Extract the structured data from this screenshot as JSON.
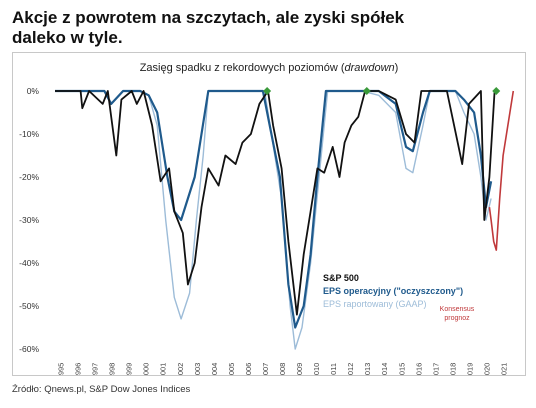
{
  "page": {
    "headline_line1": "Akcje z powrotem na szczytach, ale zyski spółek",
    "headline_line2": "daleko w tyle.",
    "source": "Źródło: Qnews.pl, S&P Dow Jones Indices"
  },
  "chart_data": {
    "type": "line",
    "title_main": "Zasięg spadku z rekordowych poziomów (",
    "title_italic": "drawdown",
    "title_end": ")",
    "xlim": [
      1995,
      2022
    ],
    "ylim": [
      -60,
      0
    ],
    "yticks": [
      "0%",
      "-10%",
      "-20%",
      "-30%",
      "-40%",
      "-50%",
      "-60%"
    ],
    "ytick_values": [
      0,
      -10,
      -20,
      -30,
      -40,
      -50,
      -60
    ],
    "xticks": [
      "1995",
      "1996",
      "1997",
      "1998",
      "1999",
      "2000",
      "2001",
      "2002",
      "2003",
      "2004",
      "2005",
      "2006",
      "2007",
      "2008",
      "2009",
      "2010",
      "2011",
      "2012",
      "2013",
      "2014",
      "2015",
      "2016",
      "2017",
      "2018",
      "2019",
      "2020",
      "2021"
    ],
    "grid": false,
    "legend_placement": "bottom-right",
    "colors": {
      "sp500": "#111111",
      "eps_operating": "#1f5a8c",
      "eps_reported": "#9dbcd8",
      "consensus": "#c0393b",
      "marker": "#3a9a3a"
    },
    "series": [
      {
        "name": "S&P 500",
        "x": [
          1995,
          1996.5,
          1996.6,
          1997,
          1997.8,
          1998.1,
          1998.6,
          1998.9,
          1999.5,
          1999.8,
          2000.2,
          2000.7,
          2001.2,
          2001.7,
          2002,
          2002.5,
          2002.8,
          2003.2,
          2003.6,
          2004,
          2004.6,
          2005,
          2005.6,
          2006,
          2006.5,
          2007,
          2007.5,
          2007.8,
          2008.3,
          2008.7,
          2009.2,
          2009.6,
          2010,
          2010.4,
          2010.8,
          2011.3,
          2011.7,
          2012,
          2012.4,
          2012.8,
          2013.2,
          2014,
          2015,
          2015.6,
          2016.1,
          2016.5,
          2017,
          2018,
          2018.9,
          2019.3,
          2020,
          2020.2,
          2020.5,
          2020.8
        ],
        "values": [
          0,
          0,
          -4,
          0,
          -3,
          0,
          -15,
          -2,
          0,
          -3,
          0,
          -8,
          -21,
          -18,
          -28,
          -33,
          -45,
          -40,
          -27,
          -18,
          -22,
          -15,
          -17,
          -12,
          -10,
          -3,
          0,
          -8,
          -18,
          -35,
          -52,
          -38,
          -28,
          -18,
          -19,
          -13,
          -20,
          -12,
          -8,
          -6,
          0,
          0,
          -2,
          -10,
          -12,
          0,
          0,
          0,
          -17,
          -3,
          0,
          -30,
          -20,
          0
        ]
      },
      {
        "name": "EPS operacyjny (\"oczyszczony\")",
        "x": [
          1995,
          1997.9,
          1998.3,
          1999,
          2000,
          2000.5,
          2001,
          2001.6,
          2002,
          2002.4,
          2002.8,
          2003.2,
          2003.6,
          2004,
          2006.5,
          2007.2,
          2007.6,
          2008.2,
          2008.7,
          2009.1,
          2009.6,
          2010,
          2010.4,
          2010.9,
          2013,
          2014,
          2015,
          2015.6,
          2016,
          2016.6,
          2017,
          2018.5,
          2019,
          2019.6,
          2020,
          2020.3,
          2020.6
        ],
        "values": [
          0,
          0,
          -3,
          0,
          0,
          -1,
          -5,
          -20,
          -28,
          -30,
          -25,
          -20,
          -10,
          0,
          0,
          0,
          -8,
          -20,
          -45,
          -55,
          -50,
          -38,
          -20,
          0,
          0,
          0,
          -3,
          -13,
          -14,
          -5,
          0,
          0,
          -2,
          -5,
          -15,
          -27,
          -21
        ]
      },
      {
        "name": "EPS raportowany (GAAP)",
        "x": [
          1995,
          1997.9,
          1998.3,
          1999,
          2000,
          2000.5,
          2001,
          2001.5,
          2002,
          2002.4,
          2002.9,
          2003.3,
          2003.7,
          2004,
          2006.5,
          2007.3,
          2007.7,
          2008.3,
          2008.8,
          2009.1,
          2009.5,
          2010,
          2010.5,
          2011,
          2013,
          2014,
          2015,
          2015.6,
          2016,
          2016.6,
          2017,
          2018.5,
          2019,
          2019.6,
          2020,
          2020.3,
          2020.6
        ],
        "values": [
          0,
          0,
          -3,
          0,
          0,
          -1,
          -8,
          -30,
          -48,
          -53,
          -47,
          -30,
          -15,
          0,
          0,
          0,
          -10,
          -25,
          -50,
          -60,
          -55,
          -40,
          -20,
          0,
          0,
          -1,
          -5,
          -18,
          -19,
          -8,
          0,
          0,
          -5,
          -10,
          -20,
          -30,
          -25
        ]
      },
      {
        "name": "Konsensus prognoz",
        "x": [
          2020.5,
          2020.6,
          2020.75,
          2020.9,
          2021.1,
          2021.3,
          2021.5,
          2021.7,
          2021.9
        ],
        "values": [
          -27,
          -30,
          -35,
          -37,
          -25,
          -15,
          -10,
          -5,
          0
        ]
      }
    ],
    "markers": [
      {
        "x": 2007.45,
        "y": 0
      },
      {
        "x": 2013.3,
        "y": 0
      },
      {
        "x": 2020.9,
        "y": 0
      }
    ],
    "legend": [
      {
        "label": "S&P 500",
        "color": "#111111"
      },
      {
        "label": "EPS operacyjny (\"oczyszczony\")",
        "color": "#1f5a8c"
      },
      {
        "label": "EPS raportowany (GAAP)",
        "color": "#9dbcd8"
      }
    ],
    "annotation_line1": "Konsensus",
    "annotation_line2": "prognoz"
  }
}
